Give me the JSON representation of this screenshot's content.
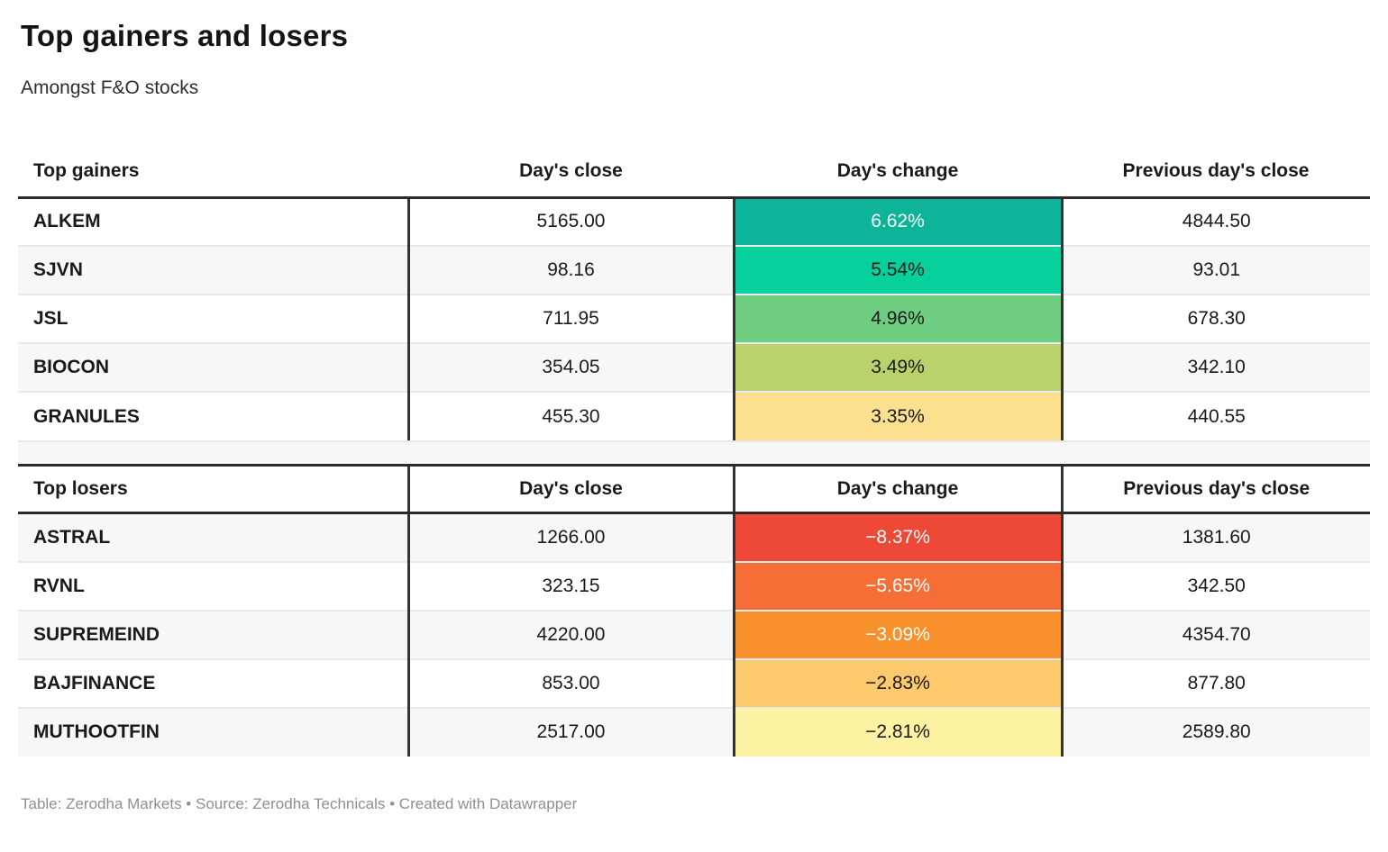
{
  "header": {
    "title": "Top gainers and losers",
    "subtitle": "Amongst F&O stocks"
  },
  "footer": {
    "attribution": "Table: Zerodha Markets • Source: Zerodha Technicals • Created with Datawrapper"
  },
  "style": {
    "zebra_white": "#ffffff",
    "zebra_gray": "#f7f7f7",
    "divider_color": "#333333",
    "header_rule_color": "#2b2b2b",
    "row_separator_color": "#e9e9e9",
    "text_color": "#1a1a1a",
    "footer_color": "#8f8f8f"
  },
  "chart_data": [
    {
      "type": "table",
      "section": "gainers",
      "columns": [
        "Top gainers",
        "Day's close",
        "Day's change",
        "Previous day's close"
      ],
      "stripe_offset": 0,
      "rows": [
        {
          "name": "ALKEM",
          "days_close": "5165.00",
          "days_change": "6.62%",
          "prev_close": "4844.50",
          "change_value": 6.62,
          "change_bg": "#0db499",
          "change_text": "#ffffff"
        },
        {
          "name": "SJVN",
          "days_close": "98.16",
          "days_change": "5.54%",
          "prev_close": "93.01",
          "change_value": 5.54,
          "change_bg": "#07d09d",
          "change_text": "#1a1a1a"
        },
        {
          "name": "JSL",
          "days_close": "711.95",
          "days_change": "4.96%",
          "prev_close": "678.30",
          "change_value": 4.96,
          "change_bg": "#6fce81",
          "change_text": "#1a1a1a"
        },
        {
          "name": "BIOCON",
          "days_close": "354.05",
          "days_change": "3.49%",
          "prev_close": "342.10",
          "change_value": 3.49,
          "change_bg": "#b9d26c",
          "change_text": "#1a1a1a"
        },
        {
          "name": "GRANULES",
          "days_close": "455.30",
          "days_change": "3.35%",
          "prev_close": "440.55",
          "change_value": 3.35,
          "change_bg": "#fce090",
          "change_text": "#1a1a1a"
        }
      ]
    },
    {
      "type": "table",
      "section": "losers",
      "columns": [
        "Top losers",
        "Day's close",
        "Day's change",
        "Previous day's close"
      ],
      "stripe_offset": 1,
      "rows": [
        {
          "name": "ASTRAL",
          "days_close": "1266.00",
          "days_change": "−8.37%",
          "prev_close": "1381.60",
          "change_value": -8.37,
          "change_bg": "#ee4837",
          "change_text": "#ffffff"
        },
        {
          "name": "RVNL",
          "days_close": "323.15",
          "days_change": "−5.65%",
          "prev_close": "342.50",
          "change_value": -5.65,
          "change_bg": "#f56e35",
          "change_text": "#ffffff"
        },
        {
          "name": "SUPREMEIND",
          "days_close": "4220.00",
          "days_change": "−3.09%",
          "prev_close": "4354.70",
          "change_value": -3.09,
          "change_bg": "#f8902b",
          "change_text": "#ffffff"
        },
        {
          "name": "BAJFINANCE",
          "days_close": "853.00",
          "days_change": "−2.83%",
          "prev_close": "877.80",
          "change_value": -2.83,
          "change_bg": "#fcc96d",
          "change_text": "#1a1a1a"
        },
        {
          "name": "MUTHOOTFIN",
          "days_close": "2517.00",
          "days_change": "−2.81%",
          "prev_close": "2589.80",
          "change_value": -2.81,
          "change_bg": "#fdf3a2",
          "change_text": "#1a1a1a"
        }
      ]
    }
  ]
}
